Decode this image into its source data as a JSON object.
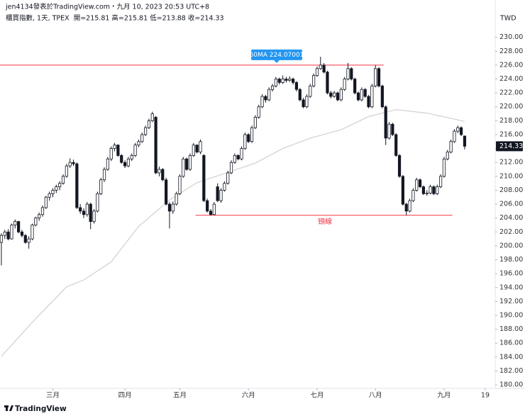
{
  "chart_data": {
    "type": "candlestick",
    "title": "jen4134發表於TradingView.com・九月 10, 2023 20:53 UTC+8",
    "subtitle": "櫃買指數, 1天, TPEX  開=215.81 高=215.81 低=213.88 收=214.33",
    "currency": "TWD",
    "brand": "TradingView",
    "up_color": "#ffffff",
    "down_color": "#131722",
    "border_color": "#131722",
    "ohlc": [
      [
        200.5,
        201.8,
        197.2,
        201.5
      ],
      [
        201.5,
        202.3,
        201,
        202
      ],
      [
        202,
        202.4,
        200.8,
        201
      ],
      [
        201,
        203.2,
        200.9,
        203
      ],
      [
        203,
        203.8,
        202.5,
        203.5
      ],
      [
        203.5,
        203.6,
        201.8,
        202
      ],
      [
        202,
        202.3,
        201.2,
        201.5
      ],
      [
        201.5,
        201.7,
        200.3,
        200.5
      ],
      [
        200.5,
        201.4,
        199.6,
        201
      ],
      [
        201,
        203.2,
        200.8,
        203
      ],
      [
        203,
        204.2,
        202.8,
        204
      ],
      [
        204,
        204.8,
        203.6,
        204.5
      ],
      [
        204.5,
        205.8,
        204.2,
        205.5
      ],
      [
        205.5,
        207.2,
        205.3,
        207
      ],
      [
        207,
        207.8,
        206.5,
        207.5
      ],
      [
        207.5,
        208.3,
        207,
        208
      ],
      [
        208,
        208.8,
        207.6,
        208.5
      ],
      [
        208.5,
        209.3,
        208,
        209
      ],
      [
        209,
        210.3,
        208.8,
        210
      ],
      [
        210,
        211.8,
        209.8,
        211.5
      ],
      [
        211.5,
        212.6,
        211.2,
        212
      ],
      [
        212,
        212.4,
        211.5,
        211.8
      ],
      [
        211.8,
        212,
        205.3,
        205.5
      ],
      [
        205.5,
        206,
        204.6,
        205
      ],
      [
        205,
        205.4,
        204,
        204.5
      ],
      [
        204.5,
        206.3,
        204.2,
        206
      ],
      [
        206,
        206.2,
        202.4,
        203.5
      ],
      [
        203.5,
        205.3,
        203.2,
        205
      ],
      [
        205,
        207.8,
        204.8,
        207.5
      ],
      [
        207.5,
        209.8,
        207.3,
        209.5
      ],
      [
        209.5,
        211.3,
        209.2,
        211
      ],
      [
        211,
        212.8,
        210.8,
        212.5
      ],
      [
        212.5,
        214.3,
        212.2,
        214
      ],
      [
        214,
        214.8,
        213.6,
        214.5
      ],
      [
        214.5,
        214.6,
        212.8,
        213
      ],
      [
        213,
        213.2,
        211.8,
        212
      ],
      [
        212,
        212.3,
        211.2,
        211.5
      ],
      [
        211.5,
        212.8,
        211.3,
        212.5
      ],
      [
        212.5,
        213.3,
        212.2,
        213
      ],
      [
        213,
        214.8,
        212.8,
        214.5
      ],
      [
        214.5,
        215.3,
        214.2,
        215
      ],
      [
        215,
        216.3,
        214.8,
        216
      ],
      [
        216,
        217.3,
        215.8,
        217
      ],
      [
        217,
        218.3,
        216.8,
        218
      ],
      [
        218,
        219.3,
        217.8,
        219
      ],
      [
        218.5,
        218.7,
        210.3,
        210.5
      ],
      [
        210.5,
        211.4,
        210,
        211
      ],
      [
        211,
        211.2,
        209.3,
        209.5
      ],
      [
        209.5,
        209.8,
        205.8,
        206
      ],
      [
        206,
        206.3,
        202.5,
        205
      ],
      [
        205,
        206.4,
        204.6,
        206
      ],
      [
        206,
        207.8,
        205.8,
        207.5
      ],
      [
        207.5,
        210.3,
        207.3,
        210
      ],
      [
        210,
        212.8,
        209.8,
        212.5
      ],
      [
        212.5,
        212.7,
        210.8,
        211
      ],
      [
        211,
        213.3,
        210.8,
        213
      ],
      [
        213,
        214.8,
        212.8,
        214.5
      ],
      [
        214.5,
        214.6,
        213.3,
        213.5
      ],
      [
        213.5,
        215.3,
        213.2,
        215
      ],
      [
        213,
        213.2,
        206.3,
        206.5
      ],
      [
        206.5,
        206.8,
        204.8,
        205
      ],
      [
        205,
        205.3,
        204.4,
        204.5
      ],
      [
        204.5,
        206.3,
        204.4,
        206
      ],
      [
        208.5,
        209,
        206.3,
        206.5
      ],
      [
        206.5,
        208.3,
        206.2,
        208
      ],
      [
        208,
        209.3,
        207.8,
        209
      ],
      [
        209,
        210.8,
        208.8,
        210.5
      ],
      [
        210.5,
        212.3,
        210.3,
        212
      ],
      [
        212,
        213.3,
        211.8,
        213
      ],
      [
        213,
        213.2,
        212.3,
        212.5
      ],
      [
        212.5,
        214.3,
        212.3,
        214
      ],
      [
        214,
        216.3,
        213.8,
        216
      ],
      [
        216,
        216.2,
        214.8,
        215
      ],
      [
        215,
        217.3,
        214.8,
        217
      ],
      [
        217,
        218.8,
        216.8,
        218.5
      ],
      [
        218.5,
        220.3,
        218.3,
        220
      ],
      [
        220,
        221.8,
        219.8,
        221.5
      ],
      [
        221.5,
        221.7,
        220.6,
        221
      ],
      [
        221,
        222.8,
        220.8,
        222.5
      ],
      [
        222.5,
        223.3,
        222.2,
        223
      ],
      [
        223,
        224.3,
        222.8,
        224
      ],
      [
        224,
        224.2,
        223.2,
        223.5
      ],
      [
        223.5,
        224.5,
        223.3,
        224
      ],
      [
        224,
        224.3,
        223.5,
        223.8
      ],
      [
        223.8,
        224.4,
        223.6,
        224
      ],
      [
        224,
        224.2,
        223.2,
        223.5
      ],
      [
        223.5,
        223.7,
        222.2,
        222.5
      ],
      [
        222.5,
        222.7,
        220.8,
        221
      ],
      [
        221,
        221.3,
        219.8,
        220
      ],
      [
        220,
        221.8,
        219.8,
        221.5
      ],
      [
        221.5,
        223.3,
        221.3,
        223
      ],
      [
        223,
        224.8,
        222.8,
        224.5
      ],
      [
        224.5,
        225.8,
        224.3,
        225.5
      ],
      [
        225.5,
        227.2,
        225.3,
        226
      ],
      [
        226,
        226.3,
        224.8,
        225
      ],
      [
        225,
        225.2,
        221.8,
        222
      ],
      [
        222,
        222.3,
        221.2,
        221.5
      ],
      [
        221.5,
        222.3,
        221.3,
        222
      ],
      [
        222,
        222.2,
        220.8,
        221
      ],
      [
        221,
        222.8,
        220.8,
        222.5
      ],
      [
        222.5,
        224.3,
        222.3,
        224
      ],
      [
        224,
        226.3,
        223.8,
        225.5
      ],
      [
        225.5,
        225.7,
        223.8,
        224
      ],
      [
        224,
        224.2,
        221.8,
        222
      ],
      [
        222,
        222.2,
        220.8,
        221
      ],
      [
        221,
        222.8,
        220.8,
        222.5
      ],
      [
        222.5,
        222.7,
        221.3,
        221.5
      ],
      [
        221.5,
        221.7,
        219.8,
        220
      ],
      [
        220,
        223.3,
        219.8,
        223
      ],
      [
        223,
        226,
        222.8,
        225.5
      ],
      [
        225.5,
        225.7,
        222.8,
        223
      ],
      [
        223,
        223.2,
        219.8,
        220
      ],
      [
        220,
        220.2,
        214.5,
        215.5
      ],
      [
        215.5,
        217.8,
        215.3,
        217.5
      ],
      [
        217.5,
        217.7,
        215.8,
        216
      ],
      [
        216,
        216.2,
        212.8,
        213
      ],
      [
        213,
        213.2,
        209.8,
        210
      ],
      [
        210,
        210.2,
        205.8,
        206
      ],
      [
        206,
        206.2,
        204.4,
        205
      ],
      [
        205,
        206.8,
        204.8,
        206.5
      ],
      [
        206.5,
        208.3,
        206.3,
        208
      ],
      [
        208,
        209.8,
        207.8,
        209.5
      ],
      [
        209.5,
        209.7,
        208.3,
        208.5
      ],
      [
        208.5,
        208.7,
        207.3,
        207.5
      ],
      [
        207.5,
        208,
        207.2,
        207.6
      ],
      [
        207.6,
        208.8,
        207.4,
        208.5
      ],
      [
        208.5,
        208.7,
        207.3,
        207.5
      ],
      [
        207.5,
        208.8,
        207.3,
        208.5
      ],
      [
        208.5,
        210.3,
        208.3,
        210
      ],
      [
        210,
        212.8,
        209.8,
        212.5
      ],
      [
        212.5,
        213.8,
        212.3,
        213.5
      ],
      [
        213.5,
        215.3,
        213.3,
        215
      ],
      [
        215,
        216.8,
        214.8,
        216.5
      ],
      [
        216.5,
        217.3,
        216.2,
        217
      ],
      [
        217,
        217.2,
        215.8,
        216
      ],
      [
        215.81,
        215.81,
        213.88,
        214.33
      ]
    ],
    "ma60": {
      "color": "#d0d0d0",
      "x": [
        0,
        9,
        19,
        24,
        32,
        40,
        49,
        57,
        65,
        74,
        82,
        90,
        99,
        107,
        115,
        124,
        135
      ],
      "values": [
        184.1,
        189,
        194.1,
        195.1,
        197.7,
        202.8,
        206.6,
        209.1,
        210.4,
        211.9,
        214,
        215.5,
        216.7,
        218.6,
        219.6,
        219.1,
        217.9
      ]
    },
    "levels": [
      {
        "value": 226,
        "from": 0,
        "to": 111,
        "color": "#f23645",
        "label": "60MA 224.07001",
        "label_color": "#2196f3"
      },
      {
        "value": 204.4,
        "from": 57,
        "to": 131,
        "color": "#f23645",
        "label": "頸線",
        "label_color": "#f23645"
      }
    ],
    "xlim": [
      -0.4,
      143.9
    ],
    "xticks": [
      {
        "value": 15,
        "label": "三月"
      },
      {
        "value": 36,
        "label": "四月"
      },
      {
        "value": 52,
        "label": "五月"
      },
      {
        "value": 72,
        "label": "六月"
      },
      {
        "value": 92,
        "label": "七月"
      },
      {
        "value": 109,
        "label": "八月"
      },
      {
        "value": 129,
        "label": "九月"
      },
      {
        "value": 141,
        "label": "19"
      }
    ],
    "ylim": [
      179.5,
      231.8
    ],
    "yticks": [
      {
        "value": 180,
        "label": "180.00"
      },
      {
        "value": 182,
        "label": "182.00"
      },
      {
        "value": 184,
        "label": "184.00"
      },
      {
        "value": 186,
        "label": "186.00"
      },
      {
        "value": 188,
        "label": "188.00"
      },
      {
        "value": 190,
        "label": "190.00"
      },
      {
        "value": 192,
        "label": "192.00"
      },
      {
        "value": 194,
        "label": "194.00"
      },
      {
        "value": 196,
        "label": "196.00"
      },
      {
        "value": 198,
        "label": "198.00"
      },
      {
        "value": 200,
        "label": "200.00"
      },
      {
        "value": 202,
        "label": "202.00"
      },
      {
        "value": 204,
        "label": "204.00"
      },
      {
        "value": 206,
        "label": "206.00"
      },
      {
        "value": 208,
        "label": "208.00"
      },
      {
        "value": 210,
        "label": "210.00"
      },
      {
        "value": 212,
        "label": "212.00"
      },
      {
        "value": 214,
        "label": "214.00"
      },
      {
        "value": 216,
        "label": "216.00"
      },
      {
        "value": 218,
        "label": "218.00"
      },
      {
        "value": 220,
        "label": "220.00"
      },
      {
        "value": 222,
        "label": "222.00"
      },
      {
        "value": 224,
        "label": "224.00"
      },
      {
        "value": 226,
        "label": "226.00"
      },
      {
        "value": 228,
        "label": "228.00"
      },
      {
        "value": 230,
        "label": "230.00"
      }
    ]
  }
}
